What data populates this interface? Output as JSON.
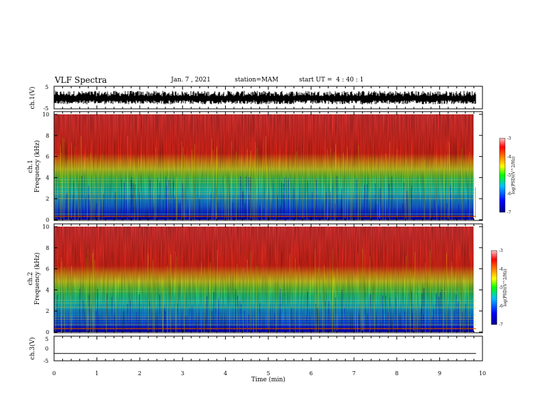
{
  "header": {
    "title": "VLF Spectra",
    "date": "Jan. 7 , 2021",
    "station": "station=MAM",
    "start": "start UT =  4 : 40 : 1"
  },
  "colors": {
    "spectrum": [
      "#00008b",
      "#0000ff",
      "#00bfff",
      "#00ffff",
      "#00ff00",
      "#ffff00",
      "#ff8000",
      "#ff0000",
      "#ff4040"
    ],
    "trace": "#000000",
    "background": "#ffffff"
  },
  "chart_data": [
    {
      "type": "line",
      "panel": "ch1-waveform",
      "ylabel": "ch.1(V)",
      "ylim": [
        -5,
        5
      ],
      "yticks": [
        "5",
        "-5"
      ],
      "xlim": [
        0,
        10
      ],
      "description_values": {
        "signal_min": -3,
        "signal_max": 3
      }
    },
    {
      "type": "heatmap",
      "panel": "ch1-spectrogram",
      "ylabel_line1": "ch.1",
      "ylabel_line2": "Frequency (kHz)",
      "ylim": [
        0,
        10
      ],
      "yticks": [
        "0",
        "2",
        "4",
        "6",
        "8",
        "10"
      ],
      "xlim": [
        0,
        9.85
      ],
      "colorbar": {
        "label": "log(PSD)(V^2/Hz)",
        "range": [
          -7,
          -3
        ],
        "ticks": [
          "-3",
          "-4",
          "-5",
          "-6",
          "-7"
        ]
      }
    },
    {
      "type": "heatmap",
      "panel": "ch2-spectrogram",
      "ylabel_line1": "ch.2",
      "ylabel_line2": "Frequency (kHz)",
      "ylim": [
        0,
        10
      ],
      "yticks": [
        "0",
        "2",
        "4",
        "6",
        "8",
        "10"
      ],
      "xlim": [
        0,
        9.85
      ],
      "colorbar": {
        "label": "log(PSD)(V^2/Hz)",
        "range": [
          -7,
          -3
        ],
        "ticks": [
          "-3",
          "-4",
          "-5",
          "-6",
          "-7"
        ]
      }
    },
    {
      "type": "line",
      "panel": "ch3-waveform",
      "ylabel": "ch.3(V)",
      "ylim": [
        -5,
        5
      ],
      "yticks": [
        "5",
        "0",
        "-5"
      ],
      "x": [
        0,
        9.85
      ],
      "y": [
        -2,
        -2
      ]
    }
  ],
  "xaxis": {
    "label": "Time (min)",
    "ticks": [
      "0",
      "1",
      "2",
      "3",
      "4",
      "5",
      "6",
      "7",
      "8",
      "9",
      "10"
    ]
  }
}
